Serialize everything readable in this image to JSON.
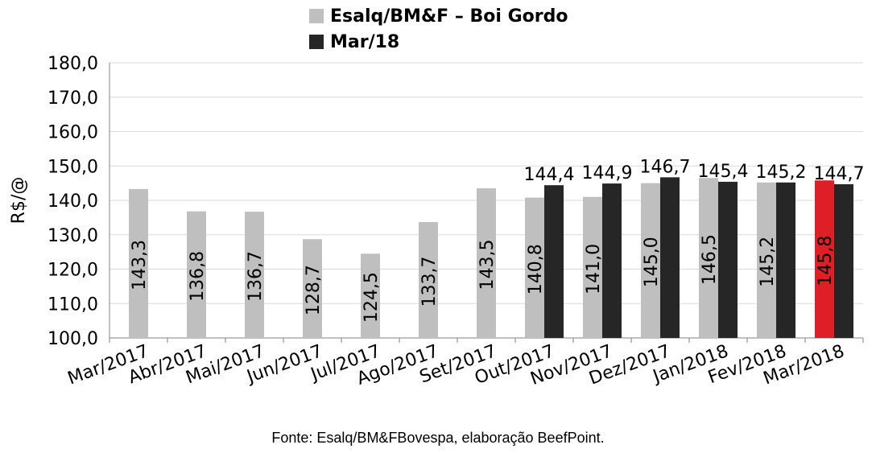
{
  "chart_data": {
    "type": "bar",
    "title": "",
    "ylabel": "R$/@",
    "xlabel": "",
    "ylim": [
      100,
      180
    ],
    "yticks": [
      "100,0",
      "110,0",
      "120,0",
      "130,0",
      "140,0",
      "150,0",
      "160,0",
      "170,0",
      "180,0"
    ],
    "grid": true,
    "legend_position": "top-center",
    "categories": [
      "Mar/2017",
      "Abr/2017",
      "Mai/2017",
      "Jun/2017",
      "Jul/2017",
      "Ago/2017",
      "Set/2017",
      "Out/2017",
      "Nov/2017",
      "Dez/2017",
      "Jan/2018",
      "Fev/2018",
      "Mar/2018"
    ],
    "series": [
      {
        "name": "Esalq/BM&F – Boi Gordo",
        "color": "#bfbfbf",
        "values": [
          143.3,
          136.8,
          136.7,
          128.7,
          124.5,
          133.7,
          143.5,
          140.8,
          141.0,
          145.0,
          146.5,
          145.2,
          145.8
        ],
        "labels": [
          "143,3",
          "136,8",
          "136,7",
          "128,7",
          "124,5",
          "133,7",
          "143,5",
          "140,8",
          "141,0",
          "145,0",
          "146,5",
          "145,2",
          "145,8"
        ],
        "highlight_index": 12,
        "highlight_color": "#dd1f26"
      },
      {
        "name": "Mar/18",
        "color": "#262626",
        "values": [
          null,
          null,
          null,
          null,
          null,
          null,
          null,
          144.4,
          144.9,
          146.7,
          145.4,
          145.2,
          144.7
        ],
        "labels": [
          "",
          "",
          "",
          "",
          "",
          "",
          "",
          "144,4",
          "144,9",
          "146,7",
          "145,4",
          "145,2",
          "144,7"
        ]
      }
    ]
  },
  "source": "Fonte: Esalq/BM&FBovespa, elaboração BeefPoint."
}
